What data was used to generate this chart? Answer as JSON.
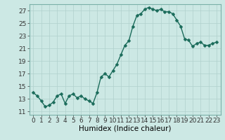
{
  "xlabel": "Humidex (Indice chaleur)",
  "background_color": "#cce8e4",
  "grid_color": "#b0d0cc",
  "line_color": "#1a6b5a",
  "marker_color": "#1a6b5a",
  "x_values": [
    0,
    0.5,
    1,
    1.5,
    2,
    2.5,
    3,
    3.5,
    4,
    4.5,
    5,
    5.5,
    6,
    6.5,
    7,
    7.5,
    8,
    8.5,
    9,
    9.5,
    10,
    10.5,
    11,
    11.5,
    12,
    12.5,
    13,
    13.5,
    14,
    14.5,
    15,
    15.5,
    16,
    16.5,
    17,
    17.5,
    18,
    18.5,
    19,
    19.5,
    20,
    20.5,
    21,
    21.5,
    22,
    22.5,
    23
  ],
  "y_values": [
    14.0,
    13.5,
    12.7,
    11.8,
    12.0,
    12.5,
    13.5,
    13.8,
    12.3,
    13.5,
    13.8,
    13.2,
    13.5,
    13.0,
    12.7,
    12.3,
    14.0,
    16.5,
    17.0,
    16.5,
    17.5,
    18.5,
    20.0,
    21.5,
    22.2,
    24.5,
    26.2,
    26.5,
    27.2,
    27.5,
    27.2,
    27.0,
    27.2,
    26.8,
    26.8,
    26.5,
    25.5,
    24.5,
    22.5,
    22.3,
    21.3,
    21.8,
    22.0,
    21.5,
    21.5,
    21.8,
    22.0
  ],
  "xlim": [
    -0.5,
    23.5
  ],
  "ylim": [
    10.5,
    28.0
  ],
  "yticks": [
    11,
    13,
    15,
    17,
    19,
    21,
    23,
    25,
    27
  ],
  "xticks": [
    0,
    1,
    2,
    3,
    4,
    5,
    6,
    7,
    8,
    9,
    10,
    11,
    12,
    13,
    14,
    15,
    16,
    17,
    18,
    19,
    20,
    21,
    22,
    23
  ],
  "marker_size": 2.5,
  "line_width": 1.0,
  "font_size": 6.5,
  "xlabel_font_size": 7.5,
  "spine_color": "#7ab0a8"
}
